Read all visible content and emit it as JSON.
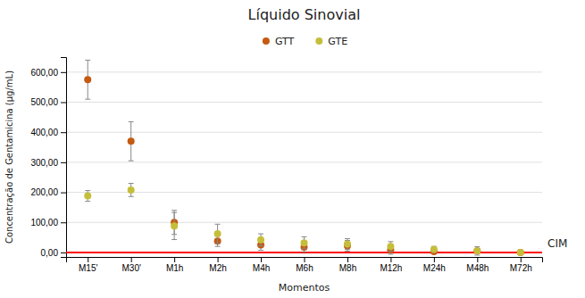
{
  "chart_data": {
    "type": "scatter",
    "title": "Líquido Sinovial",
    "x_label": "Momentos",
    "y_label": "Concentração de Gentamicina (µg/mL)",
    "categories": [
      "M15'",
      "M30'",
      "M1h",
      "M2h",
      "M4h",
      "M6h",
      "M8h",
      "M12h",
      "M24h",
      "M48h",
      "M72h"
    ],
    "series": [
      {
        "name": "GTT",
        "color": "#C55A11",
        "marker": "circle",
        "values": [
          575,
          370,
          100,
          38,
          25,
          18,
          22,
          8,
          3,
          5,
          0
        ],
        "errors": [
          65,
          65,
          40,
          18,
          18,
          16,
          18,
          14,
          5,
          8,
          0
        ]
      },
      {
        "name": "GTE",
        "color": "#C5BE3A",
        "marker": "circle",
        "values": [
          188,
          208,
          88,
          62,
          42,
          32,
          28,
          20,
          10,
          5,
          0
        ],
        "errors": [
          18,
          22,
          45,
          32,
          20,
          20,
          18,
          16,
          10,
          14,
          0
        ]
      }
    ],
    "annotations": [
      {
        "text": "CIM",
        "y": 0,
        "color": "#FF0000"
      }
    ],
    "ylim": [
      -15,
      650
    ],
    "yticks": [
      {
        "value": 0,
        "label": "0,00"
      },
      {
        "value": 100,
        "label": "100,00"
      },
      {
        "value": 200,
        "label": "200,00"
      },
      {
        "value": 300,
        "label": "300,00"
      },
      {
        "value": 400,
        "label": "400,00"
      },
      {
        "value": 500,
        "label": "500,00"
      },
      {
        "value": 600,
        "label": "600,00"
      }
    ],
    "grid": true,
    "legend": "top"
  }
}
